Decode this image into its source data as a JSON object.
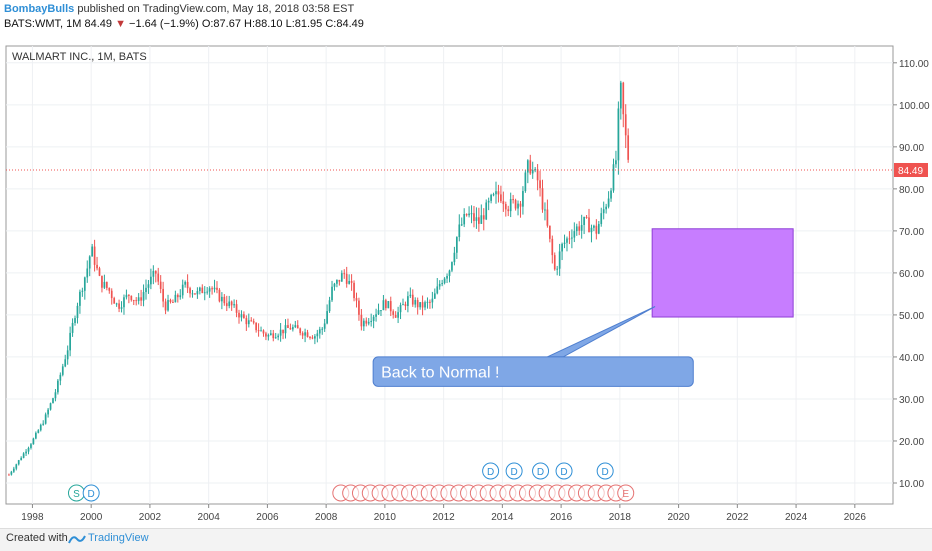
{
  "header": {
    "publisher": "BombayBulls",
    "published_text": "published on TradingView.com, May 18, 2018 03:58 EST",
    "symbol": "BATS:WMT, 1M",
    "last": "84.49",
    "change": "−1.64 (−1.9%)",
    "ohlc": "O:87.67 H:88.10 L:81.95 C:84.49"
  },
  "footer": {
    "created_with": "Created with",
    "brand": "TradingView"
  },
  "colors": {
    "up": "#26a69a",
    "down": "#ef5350",
    "annotation_box": "#c77dff",
    "callout": "#7fa7e6",
    "price_line": "#ef5350",
    "dividend": "#2f8fd6",
    "earnings": "#e57373"
  },
  "chart_data": {
    "type": "candlestick",
    "title": "WALMART INC., 1M, BATS",
    "x_ticks": [
      "1998",
      "2000",
      "2002",
      "2004",
      "2006",
      "2008",
      "2010",
      "2012",
      "2014",
      "2016",
      "2018",
      "2020",
      "2022",
      "2024",
      "2026"
    ],
    "y_ticks": [
      "10.00",
      "20.00",
      "30.00",
      "40.00",
      "50.00",
      "60.00",
      "70.00",
      "80.00",
      "90.00",
      "100.00",
      "110.00"
    ],
    "xlim": [
      1997.1,
      2027.3
    ],
    "ylim": [
      5,
      114
    ],
    "last_price_label": "84.49",
    "last_price": 84.49,
    "price_path": [
      [
        1997.2,
        12
      ],
      [
        1997.6,
        16
      ],
      [
        1998.0,
        20
      ],
      [
        1998.4,
        25
      ],
      [
        1998.8,
        32
      ],
      [
        1999.2,
        42
      ],
      [
        1999.5,
        52
      ],
      [
        1999.9,
        62
      ],
      [
        2000.0,
        66
      ],
      [
        2000.3,
        58
      ],
      [
        2000.6,
        56
      ],
      [
        2000.9,
        52
      ],
      [
        2001.3,
        55
      ],
      [
        2001.6,
        53
      ],
      [
        2001.9,
        57
      ],
      [
        2002.2,
        60
      ],
      [
        2002.5,
        52
      ],
      [
        2002.8,
        53
      ],
      [
        2003.2,
        57
      ],
      [
        2003.6,
        55
      ],
      [
        2004.0,
        57
      ],
      [
        2004.4,
        54
      ],
      [
        2004.8,
        52
      ],
      [
        2005.2,
        49
      ],
      [
        2005.6,
        47
      ],
      [
        2006.0,
        45
      ],
      [
        2006.4,
        46
      ],
      [
        2006.8,
        47
      ],
      [
        2007.2,
        46
      ],
      [
        2007.6,
        45
      ],
      [
        2007.9,
        47
      ],
      [
        2008.2,
        56
      ],
      [
        2008.6,
        60
      ],
      [
        2008.9,
        56
      ],
      [
        2009.2,
        48
      ],
      [
        2009.6,
        50
      ],
      [
        2010.0,
        53
      ],
      [
        2010.4,
        50
      ],
      [
        2010.8,
        54
      ],
      [
        2011.2,
        52
      ],
      [
        2011.6,
        53
      ],
      [
        2011.9,
        58
      ],
      [
        2012.2,
        61
      ],
      [
        2012.5,
        70
      ],
      [
        2012.8,
        74
      ],
      [
        2013.2,
        72
      ],
      [
        2013.6,
        77
      ],
      [
        2013.9,
        79
      ],
      [
        2014.2,
        76
      ],
      [
        2014.6,
        77
      ],
      [
        2014.9,
        86
      ],
      [
        2015.2,
        82
      ],
      [
        2015.5,
        72
      ],
      [
        2015.8,
        60
      ],
      [
        2016.0,
        66
      ],
      [
        2016.4,
        70
      ],
      [
        2016.8,
        72
      ],
      [
        2017.2,
        70
      ],
      [
        2017.6,
        78
      ],
      [
        2017.9,
        88
      ],
      [
        2018.0,
        106
      ],
      [
        2018.1,
        98
      ],
      [
        2018.25,
        89
      ],
      [
        2018.35,
        84.49
      ]
    ],
    "annotations": {
      "box": {
        "x": [
          2019.1,
          2023.9
        ],
        "y": [
          49.5,
          70.5
        ]
      },
      "callout_text": "Back to Normal !",
      "callout_box": {
        "x": [
          2009.6,
          2020.5
        ],
        "y": [
          33,
          40
        ]
      },
      "callout_pointer": {
        "from": [
          2015.8,
          40
        ],
        "to": [
          2019.2,
          52
        ]
      }
    },
    "events": {
      "dividend_letter": "D",
      "split_letter": "S",
      "earnings_letter": "E",
      "split_x": [
        1999.5
      ],
      "dividends_early_x": [
        2000.0
      ],
      "dividends_late_x": [
        2013.6,
        2014.4,
        2015.3,
        2016.1,
        2017.5
      ],
      "earnings_x_start": 2008.5,
      "earnings_x_end": 2018.2,
      "earnings_count": 30,
      "last_earnings_label_x": 2018.2
    }
  }
}
